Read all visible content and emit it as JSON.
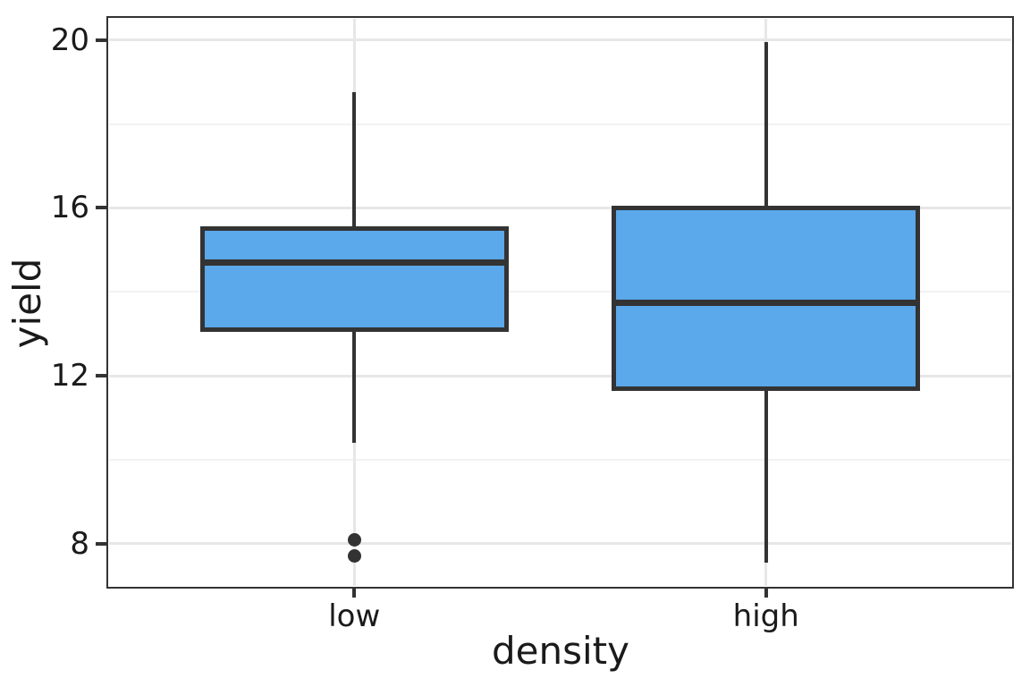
{
  "chart_data": {
    "type": "boxplot",
    "title": "",
    "xlabel": "density",
    "ylabel": "yield",
    "categories": [
      "low",
      "high"
    ],
    "y_axis": {
      "tick_values": [
        8,
        12,
        16,
        20
      ],
      "tick_labels": [
        "8",
        "12",
        "16",
        "20"
      ],
      "minor_tick_values": [
        10,
        14,
        18
      ],
      "domain": [
        6.95,
        20.55
      ],
      "grid": "major+minor"
    },
    "x_axis": {
      "tick_labels": [
        "low",
        "high"
      ],
      "grid": "major"
    },
    "series": [
      {
        "category": "low",
        "whisker_low": 10.4,
        "q1": 13.1,
        "median": 14.7,
        "q3": 15.5,
        "whisker_high": 18.75,
        "outliers": [
          8.1,
          7.7
        ]
      },
      {
        "category": "high",
        "whisker_low": 7.55,
        "q1": 11.7,
        "median": 13.75,
        "q3": 16.0,
        "whisker_high": 19.95,
        "outliers": []
      }
    ],
    "box_width_ratio": 0.75,
    "legend": "none",
    "colors": {
      "box_fill": "#5BA8EA",
      "line": "#333333",
      "grid_major": "#E7E7E7",
      "grid_minor": "#F2F2F2",
      "panel_border": "#333333",
      "background": "#FFFFFF",
      "text": "#1A1A1A"
    }
  }
}
